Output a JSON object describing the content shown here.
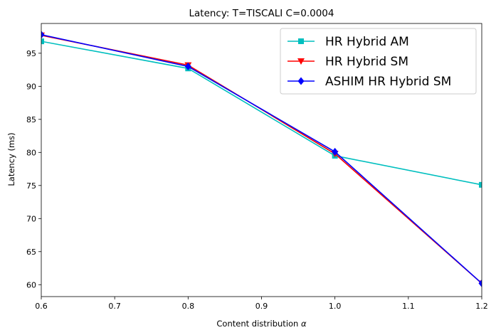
{
  "chart_data": {
    "type": "line",
    "title": "Latency: T=TISCALI C=0.0004",
    "xlabel": "Content distribution",
    "xlabel_symbol": "α",
    "ylabel": "Latency (ms)",
    "x": [
      0.6,
      0.8,
      1.0,
      1.2
    ],
    "xlim": [
      0.6,
      1.2
    ],
    "ylim": [
      58.2,
      99.5
    ],
    "xticks": [
      "0.6",
      "0.7",
      "0.8",
      "0.9",
      "1.0",
      "1.1",
      "1.2"
    ],
    "yticks": [
      "60",
      "65",
      "70",
      "75",
      "80",
      "85",
      "90",
      "95"
    ],
    "grid": false,
    "legend_position": "top-right",
    "series": [
      {
        "name": "HR Hybrid AM",
        "values": [
          96.8,
          92.7,
          79.5,
          75.1
        ],
        "color": "#00bfbf",
        "marker": "square"
      },
      {
        "name": "HR Hybrid SM",
        "values": [
          97.7,
          93.2,
          79.8,
          60.2
        ],
        "color": "#ff0000",
        "marker": "triangle-down"
      },
      {
        "name": "ASHIM HR Hybrid SM",
        "values": [
          97.8,
          93.0,
          80.1,
          60.2
        ],
        "color": "#0000ff",
        "marker": "diamond"
      }
    ]
  }
}
